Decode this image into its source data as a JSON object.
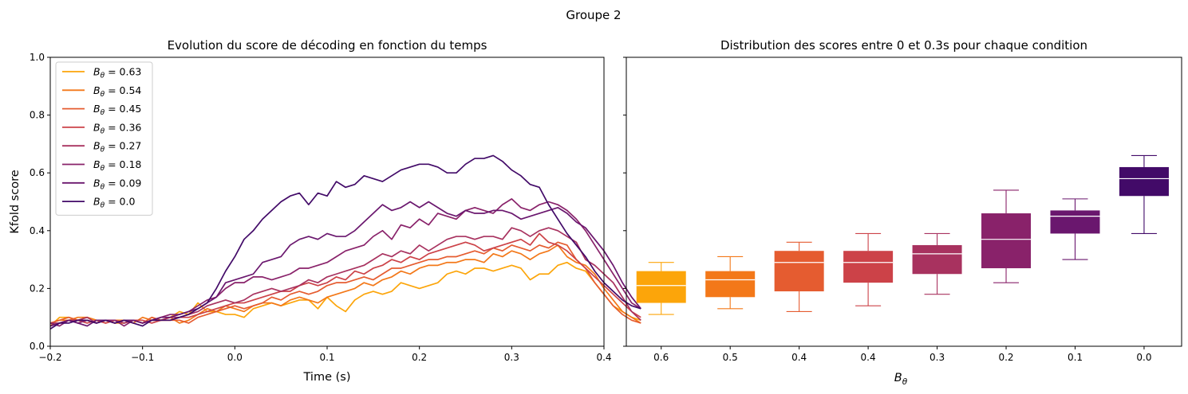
{
  "figure_title": "Groupe 2",
  "chart_data": [
    {
      "type": "line",
      "title": "Evolution du score de décoding en fonction du temps",
      "xlabel": "Time (s)",
      "ylabel": "Kfold score",
      "xlim": [
        -0.2,
        0.4
      ],
      "ylim": [
        0,
        1
      ],
      "xticks": [
        "−0.2",
        "−0.1",
        "0.0",
        "0.1",
        "0.2",
        "0.3",
        "0.4"
      ],
      "yticks": [
        "0.0",
        "0.2",
        "0.4",
        "0.6",
        "0.8",
        "1.0"
      ],
      "legend": "top-left",
      "grid": false,
      "x_start": -0.2,
      "x_step": 0.01,
      "series": [
        {
          "name": "0.63",
          "color": "#fca50a",
          "values": [
            0.07,
            0.1,
            0.1,
            0.09,
            0.1,
            0.09,
            0.09,
            0.08,
            0.08,
            0.09,
            0.08,
            0.1,
            0.09,
            0.1,
            0.12,
            0.11,
            0.15,
            0.12,
            0.12,
            0.11,
            0.11,
            0.1,
            0.13,
            0.14,
            0.15,
            0.14,
            0.15,
            0.16,
            0.16,
            0.13,
            0.17,
            0.14,
            0.12,
            0.16,
            0.18,
            0.19,
            0.18,
            0.19,
            0.22,
            0.21,
            0.2,
            0.21,
            0.22,
            0.25,
            0.26,
            0.25,
            0.27,
            0.27,
            0.26,
            0.27,
            0.28,
            0.27,
            0.23,
            0.25,
            0.25,
            0.28,
            0.29,
            0.27,
            0.26,
            0.22,
            0.18,
            0.14,
            0.12,
            0.1,
            0.09
          ]
        },
        {
          "name": "0.54",
          "color": "#f37819",
          "values": [
            0.08,
            0.09,
            0.09,
            0.1,
            0.1,
            0.09,
            0.08,
            0.09,
            0.09,
            0.08,
            0.1,
            0.09,
            0.09,
            0.1,
            0.08,
            0.09,
            0.11,
            0.13,
            0.12,
            0.14,
            0.13,
            0.12,
            0.14,
            0.15,
            0.15,
            0.14,
            0.16,
            0.17,
            0.16,
            0.15,
            0.17,
            0.18,
            0.19,
            0.2,
            0.22,
            0.21,
            0.23,
            0.24,
            0.26,
            0.25,
            0.27,
            0.28,
            0.28,
            0.29,
            0.29,
            0.3,
            0.3,
            0.29,
            0.32,
            0.31,
            0.33,
            0.32,
            0.3,
            0.32,
            0.33,
            0.35,
            0.31,
            0.29,
            0.28,
            0.25,
            0.2,
            0.16,
            0.12,
            0.1,
            0.08
          ]
        },
        {
          "name": "0.45",
          "color": "#e55c30",
          "values": [
            0.08,
            0.09,
            0.1,
            0.09,
            0.09,
            0.08,
            0.09,
            0.08,
            0.09,
            0.09,
            0.08,
            0.1,
            0.09,
            0.09,
            0.09,
            0.08,
            0.1,
            0.11,
            0.12,
            0.13,
            0.14,
            0.13,
            0.14,
            0.15,
            0.17,
            0.16,
            0.18,
            0.19,
            0.18,
            0.19,
            0.21,
            0.22,
            0.22,
            0.23,
            0.24,
            0.23,
            0.25,
            0.27,
            0.27,
            0.28,
            0.29,
            0.3,
            0.3,
            0.31,
            0.31,
            0.32,
            0.33,
            0.32,
            0.34,
            0.33,
            0.35,
            0.34,
            0.33,
            0.35,
            0.34,
            0.36,
            0.35,
            0.3,
            0.27,
            0.22,
            0.18,
            0.14,
            0.11,
            0.09,
            0.08
          ]
        },
        {
          "name": "0.36",
          "color": "#cc4248",
          "values": [
            0.07,
            0.08,
            0.09,
            0.09,
            0.08,
            0.09,
            0.08,
            0.09,
            0.08,
            0.09,
            0.09,
            0.08,
            0.09,
            0.09,
            0.1,
            0.1,
            0.11,
            0.12,
            0.13,
            0.14,
            0.15,
            0.15,
            0.16,
            0.17,
            0.18,
            0.19,
            0.19,
            0.21,
            0.22,
            0.21,
            0.22,
            0.24,
            0.23,
            0.26,
            0.25,
            0.27,
            0.28,
            0.3,
            0.29,
            0.31,
            0.3,
            0.32,
            0.33,
            0.34,
            0.35,
            0.36,
            0.35,
            0.33,
            0.34,
            0.35,
            0.36,
            0.37,
            0.35,
            0.39,
            0.36,
            0.35,
            0.33,
            0.3,
            0.27,
            0.24,
            0.21,
            0.18,
            0.15,
            0.12,
            0.1
          ]
        },
        {
          "name": "0.27",
          "color": "#a8325f",
          "values": [
            0.08,
            0.08,
            0.09,
            0.09,
            0.1,
            0.08,
            0.09,
            0.09,
            0.08,
            0.09,
            0.08,
            0.09,
            0.09,
            0.1,
            0.1,
            0.11,
            0.12,
            0.14,
            0.15,
            0.16,
            0.15,
            0.16,
            0.18,
            0.19,
            0.2,
            0.19,
            0.2,
            0.21,
            0.23,
            0.22,
            0.24,
            0.25,
            0.26,
            0.27,
            0.28,
            0.3,
            0.32,
            0.31,
            0.33,
            0.32,
            0.35,
            0.33,
            0.35,
            0.37,
            0.38,
            0.38,
            0.37,
            0.38,
            0.38,
            0.37,
            0.41,
            0.4,
            0.38,
            0.4,
            0.41,
            0.4,
            0.38,
            0.36,
            0.3,
            0.28,
            0.25,
            0.22,
            0.17,
            0.12,
            0.09
          ]
        },
        {
          "name": "0.18",
          "color": "#89226a",
          "values": [
            0.08,
            0.07,
            0.09,
            0.08,
            0.09,
            0.08,
            0.09,
            0.09,
            0.07,
            0.09,
            0.08,
            0.09,
            0.1,
            0.11,
            0.11,
            0.12,
            0.14,
            0.16,
            0.17,
            0.2,
            0.22,
            0.22,
            0.24,
            0.24,
            0.23,
            0.24,
            0.25,
            0.27,
            0.27,
            0.28,
            0.29,
            0.31,
            0.33,
            0.34,
            0.35,
            0.38,
            0.4,
            0.37,
            0.42,
            0.41,
            0.44,
            0.42,
            0.46,
            0.45,
            0.44,
            0.47,
            0.48,
            0.47,
            0.46,
            0.49,
            0.51,
            0.48,
            0.47,
            0.49,
            0.5,
            0.49,
            0.47,
            0.44,
            0.4,
            0.35,
            0.3,
            0.25,
            0.2,
            0.15,
            0.13
          ]
        },
        {
          "name": "0.09",
          "color": "#6a176e",
          "values": [
            0.07,
            0.08,
            0.09,
            0.08,
            0.07,
            0.09,
            0.09,
            0.08,
            0.09,
            0.09,
            0.08,
            0.09,
            0.1,
            0.1,
            0.11,
            0.12,
            0.13,
            0.15,
            0.17,
            0.22,
            0.23,
            0.24,
            0.25,
            0.29,
            0.3,
            0.31,
            0.35,
            0.37,
            0.38,
            0.37,
            0.39,
            0.38,
            0.38,
            0.4,
            0.43,
            0.46,
            0.49,
            0.47,
            0.48,
            0.5,
            0.48,
            0.5,
            0.48,
            0.46,
            0.45,
            0.47,
            0.46,
            0.46,
            0.47,
            0.47,
            0.46,
            0.44,
            0.45,
            0.46,
            0.47,
            0.48,
            0.46,
            0.43,
            0.41,
            0.37,
            0.33,
            0.28,
            0.22,
            0.17,
            0.13
          ]
        },
        {
          "name": "0.0",
          "color": "#420a68",
          "values": [
            0.06,
            0.08,
            0.08,
            0.09,
            0.09,
            0.08,
            0.09,
            0.08,
            0.09,
            0.08,
            0.07,
            0.09,
            0.09,
            0.09,
            0.1,
            0.11,
            0.13,
            0.15,
            0.2,
            0.26,
            0.31,
            0.37,
            0.4,
            0.44,
            0.47,
            0.5,
            0.52,
            0.53,
            0.49,
            0.53,
            0.52,
            0.57,
            0.55,
            0.56,
            0.59,
            0.58,
            0.57,
            0.59,
            0.61,
            0.62,
            0.63,
            0.63,
            0.62,
            0.6,
            0.6,
            0.63,
            0.65,
            0.65,
            0.66,
            0.64,
            0.61,
            0.59,
            0.56,
            0.55,
            0.49,
            0.44,
            0.39,
            0.35,
            0.31,
            0.26,
            0.22,
            0.19,
            0.16,
            0.14,
            0.13
          ]
        }
      ]
    },
    {
      "type": "box",
      "title": "Distribution des scores entre 0 et 0.3s pour chaque condition",
      "xlabel": "B_θ",
      "ylim": [
        0,
        1
      ],
      "shared_y": true,
      "categories": [
        "0.6",
        "0.5",
        "0.4",
        "0.4",
        "0.3",
        "0.2",
        "0.1",
        "0.0"
      ],
      "boxes": [
        {
          "color": "#fca50a",
          "whisker_low": 0.11,
          "q1": 0.15,
          "median": 0.21,
          "q3": 0.26,
          "whisker_high": 0.29
        },
        {
          "color": "#f37819",
          "whisker_low": 0.13,
          "q1": 0.17,
          "median": 0.23,
          "q3": 0.26,
          "whisker_high": 0.31
        },
        {
          "color": "#e55c30",
          "whisker_low": 0.12,
          "q1": 0.19,
          "median": 0.29,
          "q3": 0.33,
          "whisker_high": 0.36
        },
        {
          "color": "#cc4248",
          "whisker_low": 0.14,
          "q1": 0.22,
          "median": 0.29,
          "q3": 0.33,
          "whisker_high": 0.39
        },
        {
          "color": "#a8325f",
          "whisker_low": 0.18,
          "q1": 0.25,
          "median": 0.32,
          "q3": 0.35,
          "whisker_high": 0.39
        },
        {
          "color": "#89226a",
          "whisker_low": 0.22,
          "q1": 0.27,
          "median": 0.37,
          "q3": 0.46,
          "whisker_high": 0.54
        },
        {
          "color": "#6a176e",
          "whisker_low": 0.3,
          "q1": 0.39,
          "median": 0.45,
          "q3": 0.47,
          "whisker_high": 0.51
        },
        {
          "color": "#420a68",
          "whisker_low": 0.39,
          "q1": 0.52,
          "median": 0.58,
          "q3": 0.62,
          "whisker_high": 0.66
        }
      ]
    }
  ]
}
